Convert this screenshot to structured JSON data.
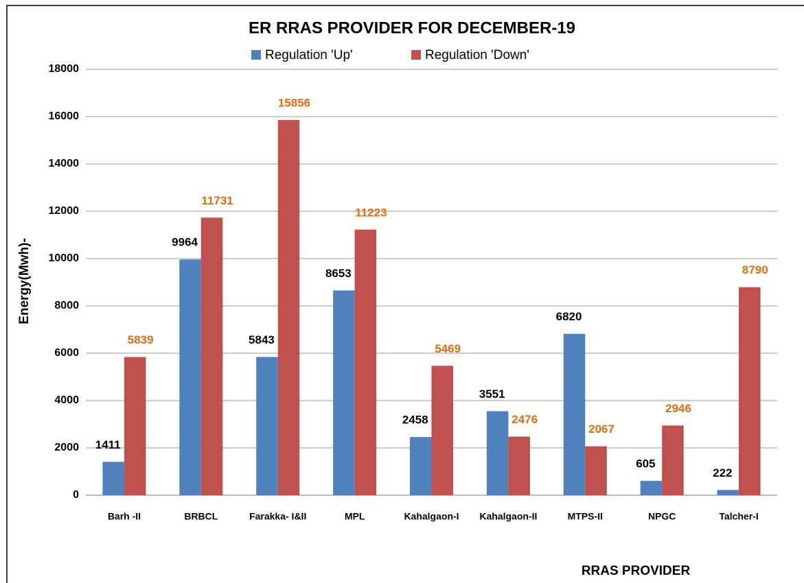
{
  "chart_data": {
    "type": "bar",
    "title": "ER RRAS PROVIDER FOR DECEMBER-19",
    "y_label": "Energy(Mwh)-",
    "x_label": "RRAS PROVIDER",
    "categories": [
      "Barh -II",
      "BRBCL",
      "Farakka- I&II",
      "MPL",
      "Kahalgaon-I",
      "Kahalgaon-II",
      "MTPS-II",
      "NPGC",
      "Talcher-I"
    ],
    "series": [
      {
        "name": "Regulation 'Up'",
        "color": "#4f81bd",
        "label_color": "#000000",
        "values": [
          1411,
          9964,
          5843,
          8653,
          2458,
          3551,
          6820,
          605,
          222
        ]
      },
      {
        "name": "Regulation 'Down'",
        "color": "#c0504d",
        "label_color": "#e46c0a",
        "values": [
          5839,
          11731,
          15856,
          11223,
          5469,
          2476,
          2067,
          2946,
          8790
        ]
      }
    ],
    "ylim": [
      0,
      18000
    ],
    "yticks": [
      0,
      2000,
      4000,
      6000,
      8000,
      10000,
      12000,
      14000,
      16000,
      18000
    ],
    "grid": true,
    "legend": "top"
  }
}
